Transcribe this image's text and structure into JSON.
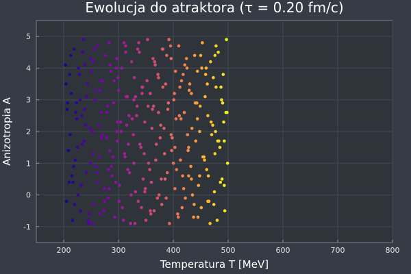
{
  "chart_data": {
    "type": "scatter",
    "title": "Ewolucja do atraktora (τ = 0.20 fm/c)",
    "xlabel": "Temperatura T [MeV]",
    "ylabel": "Anizotropia A",
    "xlim": [
      150,
      800
    ],
    "ylim": [
      -1.5,
      5.5
    ],
    "x_ticks": [
      200,
      300,
      400,
      500,
      600,
      700,
      800
    ],
    "y_ticks": [
      -1,
      0,
      1,
      2,
      3,
      4,
      5
    ],
    "grid": true,
    "legend": "none",
    "colormap": "plasma",
    "color_by": "x",
    "color_range": [
      200,
      500
    ],
    "points": {
      "x": [
        203,
        205,
        207,
        210,
        212,
        214,
        216,
        219,
        221,
        224,
        226,
        229,
        231,
        234,
        236,
        238,
        241,
        243,
        246,
        248,
        250,
        252,
        255,
        257,
        259,
        262,
        264,
        267,
        269,
        271,
        274,
        276,
        279,
        281,
        284,
        286,
        288,
        291,
        293,
        296,
        298,
        300,
        302,
        305,
        307,
        310,
        312,
        314,
        317,
        319,
        322,
        324,
        327,
        329,
        331,
        334,
        336,
        338,
        341,
        343,
        345,
        348,
        350,
        353,
        355,
        358,
        360,
        362,
        365,
        367,
        369,
        372,
        374,
        377,
        379,
        381,
        384,
        386,
        389,
        391,
        393,
        396,
        398,
        401,
        403,
        405,
        408,
        410,
        413,
        415,
        417,
        420,
        422,
        425,
        427,
        429,
        432,
        434,
        437,
        439,
        441,
        444,
        446,
        449,
        451,
        453,
        456,
        458,
        461,
        463,
        465,
        468,
        470,
        473,
        475,
        477,
        480,
        482,
        485,
        487,
        489,
        492,
        494,
        497,
        499,
        204,
        209,
        213,
        218,
        222,
        227,
        232,
        237,
        242,
        247,
        252,
        256,
        261,
        266,
        271,
        275,
        280,
        285,
        290,
        295,
        299,
        304,
        309,
        313,
        318,
        323,
        328,
        333,
        337,
        342,
        347,
        352,
        357,
        361,
        366,
        371,
        376,
        381,
        385,
        390,
        395,
        400,
        404,
        409,
        414,
        419,
        424,
        428,
        433,
        438,
        443,
        448,
        452,
        457,
        462,
        467,
        472,
        476,
        481,
        486,
        491,
        496,
        206,
        211,
        215,
        220,
        225,
        230,
        235,
        240,
        245,
        249,
        254,
        258,
        263,
        268,
        273,
        278,
        283,
        287,
        292,
        297,
        301,
        306,
        311,
        316,
        320,
        325,
        330,
        335,
        339,
        344,
        349,
        354,
        359,
        363,
        368,
        373,
        378,
        383,
        387,
        392,
        397,
        402,
        406,
        411,
        416,
        421,
        426,
        430,
        435,
        440,
        445,
        450,
        454,
        459,
        464,
        469,
        474,
        478,
        483,
        488,
        493,
        498,
        208,
        223,
        238,
        253,
        268,
        283,
        298,
        313,
        328,
        343,
        358,
        373,
        388,
        403,
        418,
        433,
        448,
        463,
        478,
        493,
        217,
        233,
        251,
        265,
        282,
        297,
        315,
        331,
        348,
        364,
        380,
        396,
        412,
        428,
        444,
        460,
        476,
        490
      ],
      "y": [
        4.1,
        -0.2,
        2.9,
        0.4,
        1.9,
        3.2,
        -0.8,
        4.6,
        1.1,
        2.4,
        0.0,
        3.8,
        -0.5,
        1.6,
        4.9,
        2.7,
        0.7,
        3.5,
        -0.9,
        2.1,
        4.3,
        1.3,
        -0.3,
        3.0,
        0.9,
        4.7,
        2.2,
        -0.6,
        1.8,
        3.6,
        0.2,
        4.4,
        2.6,
        -0.1,
        1.4,
        3.9,
        0.6,
        2.9,
        -0.7,
        4.0,
        1.7,
        3.3,
        0.3,
        2.0,
        -0.4,
        4.8,
        1.2,
        3.1,
        0.8,
        2.5,
        -0.9,
        4.2,
        1.9,
        3.7,
        0.1,
        2.8,
        -0.2,
        4.5,
        1.5,
        3.4,
        0.5,
        2.3,
        -0.8,
        4.9,
        1.0,
        3.2,
        0.4,
        2.7,
        -0.5,
        4.1,
        1.6,
        3.8,
        0.0,
        2.2,
        -0.3,
        4.6,
        1.3,
        3.5,
        0.7,
        2.9,
        -0.9,
        4.3,
        1.8,
        3.0,
        0.2,
        2.4,
        -0.6,
        4.7,
        1.1,
        3.6,
        0.6,
        2.6,
        -0.1,
        4.0,
        1.4,
        3.3,
        0.9,
        2.1,
        -0.7,
        4.4,
        1.7,
        3.9,
        0.3,
        2.8,
        -0.4,
        4.8,
        1.2,
        3.1,
        0.8,
        2.5,
        -0.2,
        4.2,
        1.9,
        3.7,
        0.1,
        2.0,
        -0.8,
        4.5,
        1.5,
        3.4,
        0.5,
        2.3,
        -0.5,
        4.9,
        1.0,
        3.5,
        1.4,
        4.4,
        0.9,
        2.6,
        4.0,
        0.3,
        1.7,
        3.1,
        -0.6,
        2.0,
        4.6,
        0.7,
        3.3,
        1.9,
        -0.2,
        2.8,
        4.1,
        1.2,
        0.4,
        3.7,
        2.3,
        -0.8,
        4.5,
        1.6,
        0.0,
        3.0,
        2.5,
        4.8,
        -0.4,
        1.3,
        3.6,
        0.8,
        2.1,
        4.2,
        -0.1,
        1.8,
        3.4,
        0.5,
        2.7,
        4.7,
        1.0,
        3.9,
        -0.7,
        2.4,
        0.2,
        4.3,
        1.5,
        3.2,
        -0.3,
        2.9,
        0.6,
        4.0,
        1.1,
        3.5,
        -0.9,
        2.2,
        4.4,
        1.7,
        0.4,
        3.8,
        2.6,
        2.7,
        3.8,
        0.6,
        -0.3,
        1.5,
        3.0,
        4.5,
        2.2,
        -0.8,
        1.0,
        4.2,
        3.3,
        0.4,
        2.6,
        -0.5,
        1.8,
        4.8,
        0.9,
        3.6,
        2.0,
        -0.2,
        4.0,
        1.3,
        3.1,
        0.7,
        2.4,
        -0.9,
        4.6,
        1.6,
        3.4,
        0.2,
        2.8,
        -0.6,
        4.3,
        1.1,
        3.7,
        0.5,
        2.1,
        -0.1,
        4.9,
        1.4,
        3.2,
        0.8,
        2.5,
        -0.4,
        4.1,
        1.9,
        3.5,
        0.0,
        2.9,
        -0.7,
        4.4,
        1.2,
        3.8,
        0.6,
        2.3,
        -0.3,
        4.7,
        1.7,
        3.0,
        0.3,
        2.6,
        1.4,
        2.9,
        4.1,
        -0.9,
        3.6,
        0.2,
        2.3,
        4.7,
        1.0,
        3.2,
        -0.5,
        2.6,
        4.4,
        1.5,
        3.8,
        0.5,
        2.0,
        -0.2,
        3.4,
        1.7,
        0.4,
        2.5,
        3.9,
        1.2,
        0.8,
        4.3,
        2.2,
        3.1,
        0.1,
        2.8,
        4.6,
        1.9,
        3.4,
        0.6,
        2.4,
        4.0,
        1.3,
        2.9
      ]
    }
  }
}
